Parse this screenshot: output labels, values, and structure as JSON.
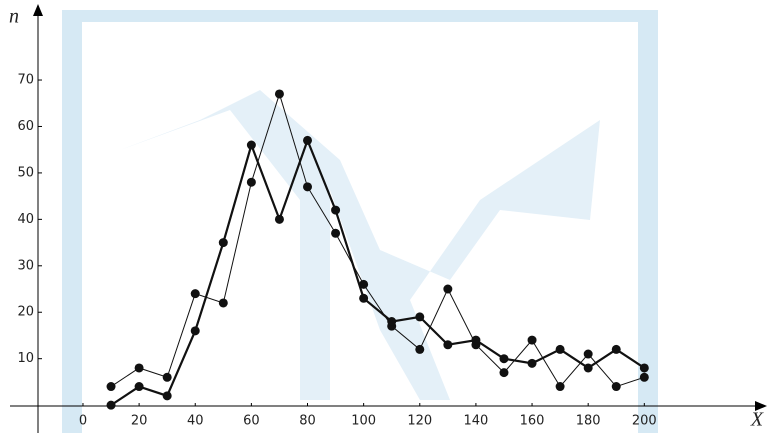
{
  "chart_data": {
    "type": "line",
    "x_label": "X",
    "y_label": "n",
    "xlim": [
      -26,
      243
    ],
    "ylim": [
      -6,
      84
    ],
    "xticks": [
      0,
      20,
      40,
      60,
      80,
      100,
      120,
      140,
      160,
      180,
      200
    ],
    "yticks": [
      10,
      20,
      30,
      40,
      50,
      60,
      70
    ],
    "x": [
      10,
      20,
      30,
      40,
      50,
      60,
      70,
      80,
      90,
      100,
      110,
      120,
      130,
      140,
      150,
      160,
      170,
      180,
      190,
      200
    ],
    "series": [
      {
        "color": "#111111",
        "line_width": 1,
        "values": [
          4,
          8,
          6,
          24,
          22,
          48,
          67,
          47,
          37,
          26,
          17,
          12,
          25,
          13,
          7,
          14,
          4,
          11,
          4,
          6
        ]
      },
      {
        "color": "#111111",
        "line_width": 2.2,
        "values": [
          0,
          4,
          2,
          16,
          35,
          56,
          40,
          57,
          42,
          23,
          18,
          19,
          13,
          14,
          10,
          9,
          12,
          8,
          12,
          8
        ]
      }
    ]
  }
}
